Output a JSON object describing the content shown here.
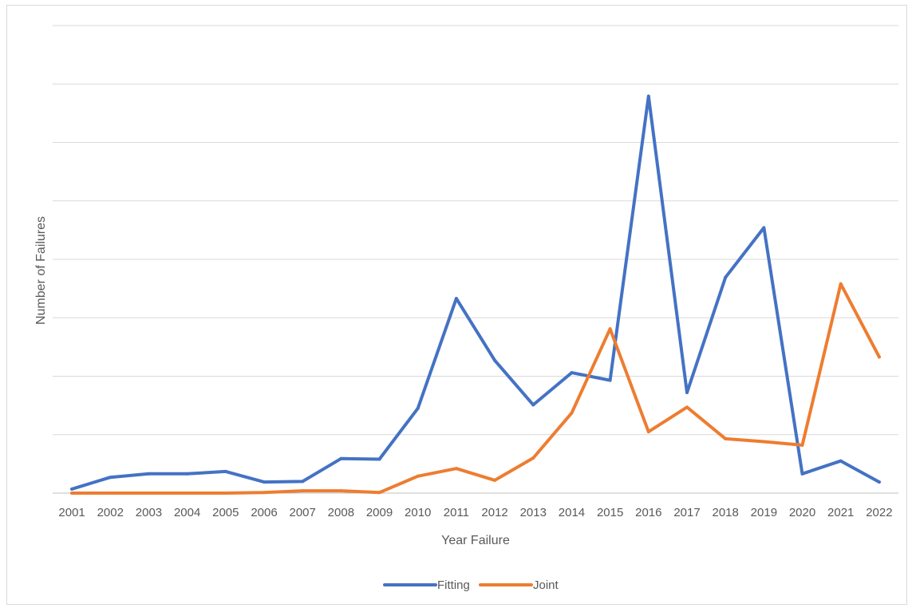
{
  "chart_data": {
    "type": "line",
    "title": "",
    "xlabel": "Year Failure",
    "ylabel": "Number of Failures",
    "categories": [
      "2001",
      "2002",
      "2003",
      "2004",
      "2005",
      "2006",
      "2007",
      "2008",
      "2009",
      "2010",
      "2011",
      "2012",
      "2013",
      "2014",
      "2015",
      "2016",
      "2017",
      "2018",
      "2019",
      "2020",
      "2021",
      "2022"
    ],
    "ylim": [
      0,
      8
    ],
    "y_gridlines": [
      0,
      1,
      2,
      3,
      4,
      5,
      6,
      7,
      8
    ],
    "y_tick_labels_shown": false,
    "grid": true,
    "legend_position": "bottom",
    "series": [
      {
        "name": "Fitting",
        "color": "#4472C4",
        "values": [
          0.07,
          0.27,
          0.33,
          0.33,
          0.37,
          0.19,
          0.2,
          0.59,
          0.58,
          1.45,
          3.33,
          2.27,
          1.51,
          2.06,
          1.93,
          6.79,
          1.72,
          3.69,
          4.54,
          0.33,
          0.55,
          0.19
        ]
      },
      {
        "name": "Joint",
        "color": "#ED7D31",
        "values": [
          0.0,
          0.0,
          0.0,
          0.0,
          0.0,
          0.01,
          0.04,
          0.04,
          0.01,
          0.29,
          0.42,
          0.22,
          0.6,
          1.37,
          2.81,
          1.05,
          1.47,
          0.93,
          0.88,
          0.82,
          3.58,
          2.33
        ]
      }
    ]
  }
}
